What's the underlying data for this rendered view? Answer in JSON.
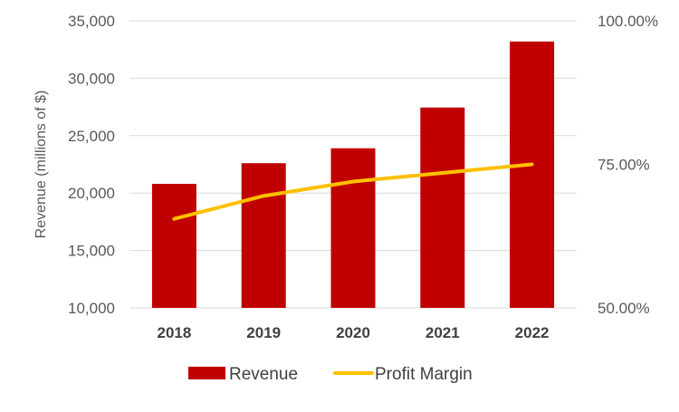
{
  "chart_data": {
    "type": "bar",
    "title": "",
    "categories": [
      "2018",
      "2019",
      "2020",
      "2021",
      "2022"
    ],
    "series": [
      {
        "name": "Revenue",
        "type": "bar",
        "axis": "left",
        "color": "#C00000",
        "values": [
          20800,
          22600,
          23900,
          27450,
          33200
        ]
      },
      {
        "name": "Profit Margin",
        "type": "line",
        "axis": "right",
        "color": "#FFC000",
        "values": [
          0.655,
          0.695,
          0.72,
          0.735,
          0.75
        ]
      }
    ],
    "xlabel": "",
    "ylabel": "Revenue (millions of $)",
    "ylim": [
      10000,
      35000
    ],
    "yticks": [
      10000,
      15000,
      20000,
      25000,
      30000,
      35000
    ],
    "ytick_labels": [
      "10,000",
      "15,000",
      "20,000",
      "25,000",
      "30,000",
      "35,000"
    ],
    "y2label": "",
    "y2lim": [
      0.5,
      1.0
    ],
    "y2ticks": [
      0.5,
      0.75,
      1.0
    ],
    "y2tick_labels": [
      "50.00%",
      "75.00%",
      "100.00%"
    ],
    "grid": true,
    "gridline_color": "#D9D9D9",
    "legend": "bottom"
  }
}
